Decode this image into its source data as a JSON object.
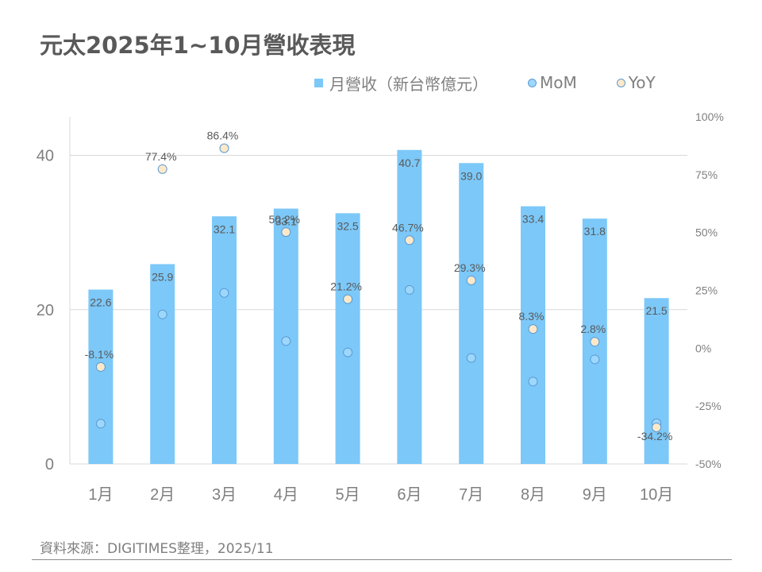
{
  "title": "元太2025年1~10月營收表現",
  "legend": {
    "revenue": "月營收（新台幣億元）",
    "mom": "MoM",
    "yoy": "YoY"
  },
  "source": "資料來源：DIGITIMES整理，2025/11",
  "colors": {
    "bar": "#7cc8f8",
    "mom_fill": "#9dd7fb",
    "yoy_fill": "#fde9c9",
    "marker_stroke": "#5b9bd5",
    "grid": "#d9d9d9",
    "label_text": "#595959",
    "axis_text": "#7f7f7f"
  },
  "chart_data": {
    "type": "bar",
    "title": "元太2025年1~10月營收表現",
    "categories": [
      "1月",
      "2月",
      "3月",
      "4月",
      "5月",
      "6月",
      "7月",
      "8月",
      "9月",
      "10月"
    ],
    "series": [
      {
        "name": "月營收（新台幣億元）",
        "type": "bar",
        "axis": "left",
        "values": [
          22.6,
          25.9,
          32.1,
          33.1,
          32.5,
          40.7,
          39.0,
          33.4,
          31.8,
          21.5
        ],
        "labels": [
          "22.6",
          "25.9",
          "32.1",
          "33.1",
          "32.5",
          "40.7",
          "39.0",
          "33.4",
          "31.8",
          "21.5"
        ]
      },
      {
        "name": "MoM",
        "type": "scatter",
        "axis": "right",
        "unit": "%",
        "values": [
          -32.6,
          14.6,
          23.9,
          3.1,
          -1.8,
          25.2,
          -4.2,
          -14.4,
          -4.8,
          -32.4
        ],
        "labels_shown": false
      },
      {
        "name": "YoY",
        "type": "scatter",
        "axis": "right",
        "unit": "%",
        "values": [
          -8.1,
          77.4,
          86.4,
          50.2,
          21.2,
          46.7,
          29.3,
          8.3,
          2.8,
          -34.2
        ],
        "labels": [
          "-8.1%",
          "77.4%",
          "86.4%",
          "50.2%",
          "21.2%",
          "46.7%",
          "29.3%",
          "8.3%",
          "2.8%",
          "-34.2%"
        ]
      }
    ],
    "y_left": {
      "range": [
        0,
        45
      ],
      "ticks": [
        0,
        20,
        40
      ],
      "tick_labels": [
        "0",
        "20",
        "40"
      ]
    },
    "y_right": {
      "range": [
        -50,
        100
      ],
      "ticks": [
        -50,
        -25,
        0,
        25,
        50,
        75,
        100
      ],
      "tick_labels": [
        "-50%",
        "-25%",
        "0%",
        "25%",
        "50%",
        "75%",
        "100%"
      ]
    },
    "xlabel": "",
    "ylabel": "",
    "grid": true,
    "legend_position": "top"
  }
}
